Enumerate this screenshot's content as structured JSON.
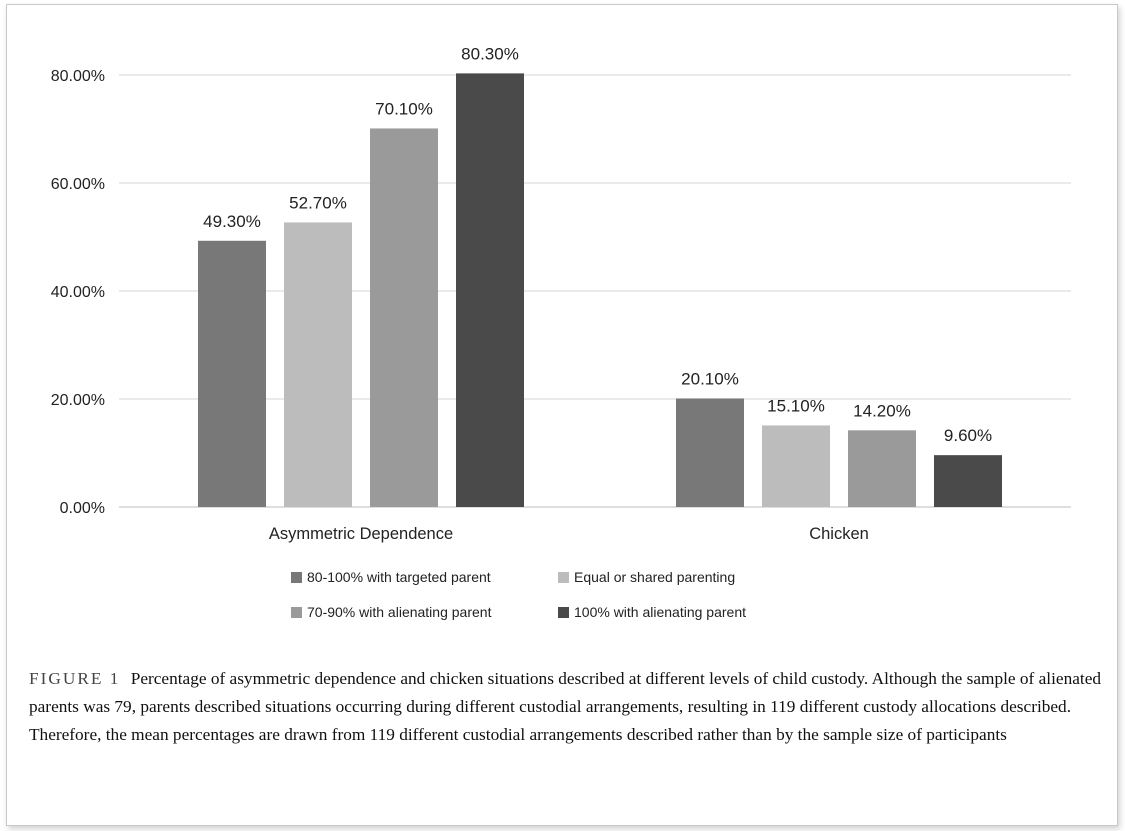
{
  "chart_data": {
    "type": "bar",
    "categories": [
      "Asymmetric Dependence",
      "Chicken"
    ],
    "series": [
      {
        "name": "80-100% with targeted parent",
        "values": [
          49.3,
          20.1
        ],
        "labels": [
          "49.30%",
          "20.10%"
        ],
        "color": "#787878"
      },
      {
        "name": "Equal or shared parenting",
        "values": [
          52.7,
          15.1
        ],
        "labels": [
          "52.70%",
          "15.10%"
        ],
        "color": "#bcbcbc"
      },
      {
        "name": "70-90% with alienating parent",
        "values": [
          70.1,
          14.2
        ],
        "labels": [
          "70.10%",
          "14.20%"
        ],
        "color": "#9a9a9a"
      },
      {
        "name": "100% with alienating parent",
        "values": [
          80.3,
          9.6
        ],
        "labels": [
          "80.30%",
          "9.60%"
        ],
        "color": "#4a4a4a"
      }
    ],
    "ylim": [
      0,
      80
    ],
    "yticks": [
      "0.00%",
      "20.00%",
      "40.00%",
      "60.00%",
      "80.00%"
    ],
    "grid": true,
    "legend_position": "bottom"
  },
  "caption": {
    "label": "FIGURE 1",
    "text": "Percentage of asymmetric dependence and chicken situations described at different levels of child custody. Although the sample of alienated parents was 79, parents described situations occurring during different custodial arrangements, resulting in 119 different custody allocations described. Therefore, the mean percentages are drawn from 119 different custodial arrangements described rather than by the sample size of participants"
  }
}
